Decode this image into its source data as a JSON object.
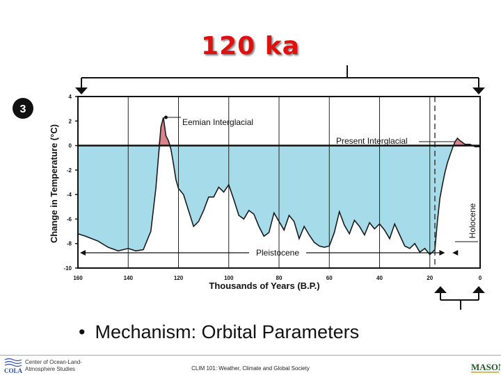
{
  "slide": {
    "title": "120 ka",
    "figure_number": "3",
    "bullet": "Mechanism: Orbital Parameters",
    "footer_org": "Center of Ocean-Land-Atmosphere Studies",
    "footer_org_logo": "COLA",
    "footer_center": "CLIM 101: Weather, Climate and Global Society",
    "footer_right_logo": "MASON"
  },
  "colors": {
    "title": "#e01010",
    "cold_fill": "#a6dce9",
    "warm_fill": "#d9848a",
    "line": "#1a1a1a"
  },
  "chart_data": {
    "type": "area",
    "xlabel": "Thousands of Years (B.P.)",
    "ylabel": "Change in Temperature (°C)",
    "xlim": [
      160,
      0
    ],
    "ylim": [
      -10,
      4
    ],
    "x_ticks": [
      160,
      140,
      120,
      100,
      80,
      60,
      40,
      20,
      0
    ],
    "y_ticks": [
      4,
      2,
      0,
      -2,
      -4,
      -6,
      -8,
      -10
    ],
    "grid": "vertical lines every 20 ka",
    "annotations": {
      "eemian": "Eemian Interglacial",
      "present": "Present Interglacial",
      "pleistocene": "Pleistocene",
      "holocene": "Holocene"
    },
    "series": [
      {
        "name": "",
        "x": [
          160,
          157,
          152,
          148,
          144,
          140,
          137,
          134,
          131,
          129,
          128,
          127,
          126,
          125,
          124,
          123,
          122,
          121,
          120,
          118,
          116,
          114,
          112,
          110,
          108,
          106,
          104,
          102,
          100,
          98,
          96,
          94,
          92,
          90,
          88,
          86,
          84,
          82,
          80,
          78,
          76,
          74,
          72,
          70,
          68,
          66,
          64,
          62,
          60,
          58,
          56,
          54,
          52,
          50,
          48,
          46,
          44,
          42,
          40,
          38,
          36,
          34,
          32,
          30,
          28,
          26,
          24,
          22,
          20,
          19,
          18,
          17,
          16,
          15,
          14,
          13,
          12,
          11,
          10,
          9,
          8,
          6,
          4,
          2,
          0
        ],
        "y": [
          -7.2,
          -7.4,
          -7.8,
          -8.3,
          -8.6,
          -8.4,
          -8.6,
          -8.5,
          -7,
          -3.5,
          -1,
          1.5,
          2.3,
          0.8,
          0.4,
          -0.3,
          -1.5,
          -2.8,
          -3.5,
          -4,
          -5.3,
          -6.6,
          -6.2,
          -5.3,
          -4.2,
          -4.2,
          -3.4,
          -3.8,
          -3.2,
          -4.4,
          -5.7,
          -6,
          -5.3,
          -5.6,
          -6.6,
          -7.4,
          -7.1,
          -5.5,
          -6.2,
          -6.9,
          -5.7,
          -6.2,
          -7.6,
          -6.6,
          -7.3,
          -7.9,
          -8.2,
          -8.3,
          -8.2,
          -7.1,
          -5.4,
          -6.5,
          -7.2,
          -6.1,
          -6.6,
          -7.3,
          -6.3,
          -6.8,
          -6.4,
          -6.9,
          -7.6,
          -6.4,
          -7.3,
          -8.2,
          -8.4,
          -8,
          -8.7,
          -8.4,
          -8.9,
          -8.7,
          -8.5,
          -6.2,
          -4.3,
          -3.2,
          -2.2,
          -1.4,
          -0.8,
          -0.2,
          0.3,
          0.6,
          0.4,
          0.1,
          0.1,
          -0.1,
          -0.1
        ]
      }
    ]
  }
}
